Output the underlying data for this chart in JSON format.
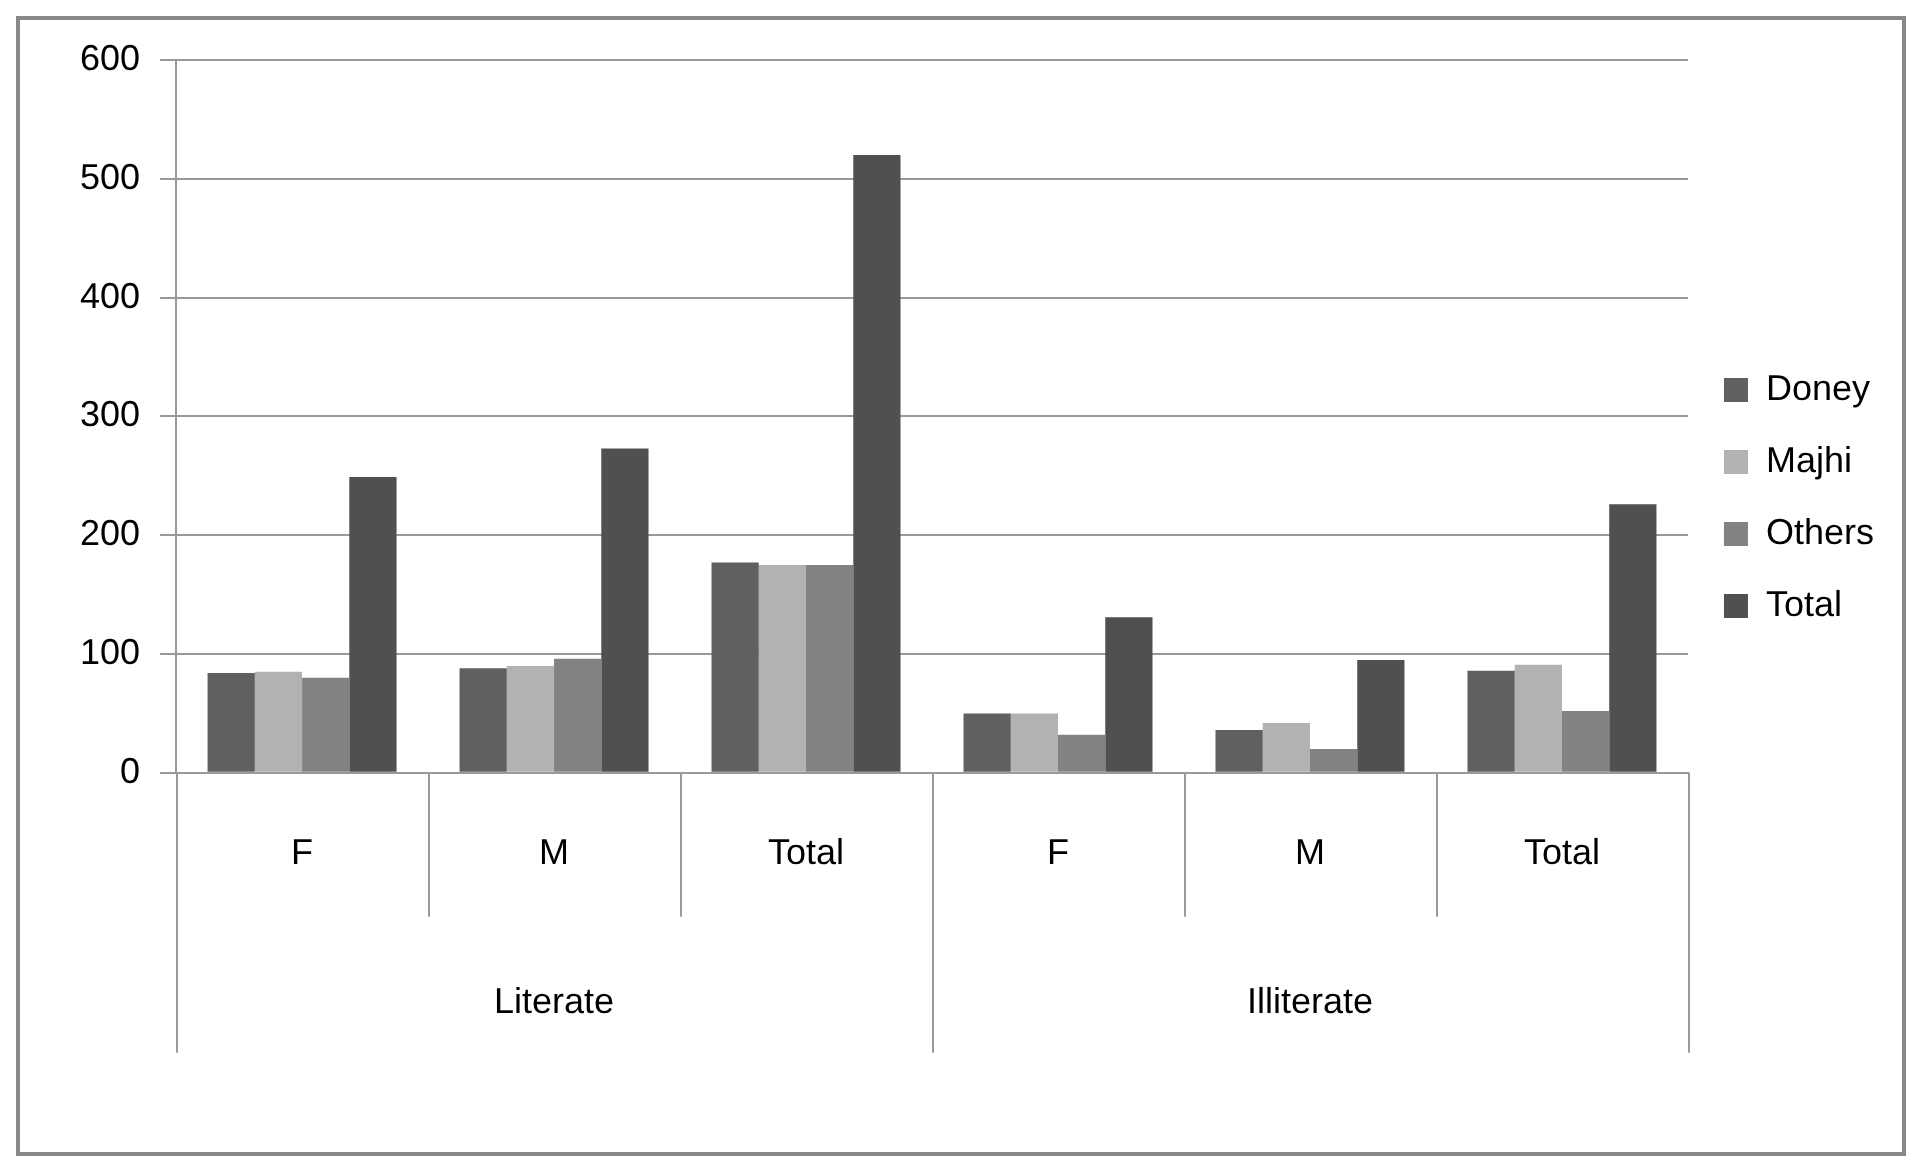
{
  "chart_data": {
    "type": "bar",
    "categories": [
      "F",
      "M",
      "Total",
      "F",
      "M",
      "Total"
    ],
    "annotations": [
      "Literate",
      "Illiterate"
    ],
    "series": [
      {
        "name": "Doney",
        "color": "#606060",
        "values": [
          84,
          88,
          177,
          50,
          36,
          86
        ]
      },
      {
        "name": "Majhi",
        "color": "#b2b2b2",
        "values": [
          85,
          90,
          175,
          50,
          42,
          91
        ]
      },
      {
        "name": "Others",
        "color": "#828282",
        "values": [
          80,
          96,
          175,
          32,
          20,
          52
        ]
      },
      {
        "name": "Total",
        "color": "#505050",
        "values": [
          249,
          273,
          520,
          131,
          95,
          226
        ]
      }
    ],
    "ylim": [
      0,
      600
    ],
    "yticks": [
      0,
      100,
      200,
      300,
      400,
      500,
      600
    ],
    "grid": "y",
    "legend": "right"
  }
}
